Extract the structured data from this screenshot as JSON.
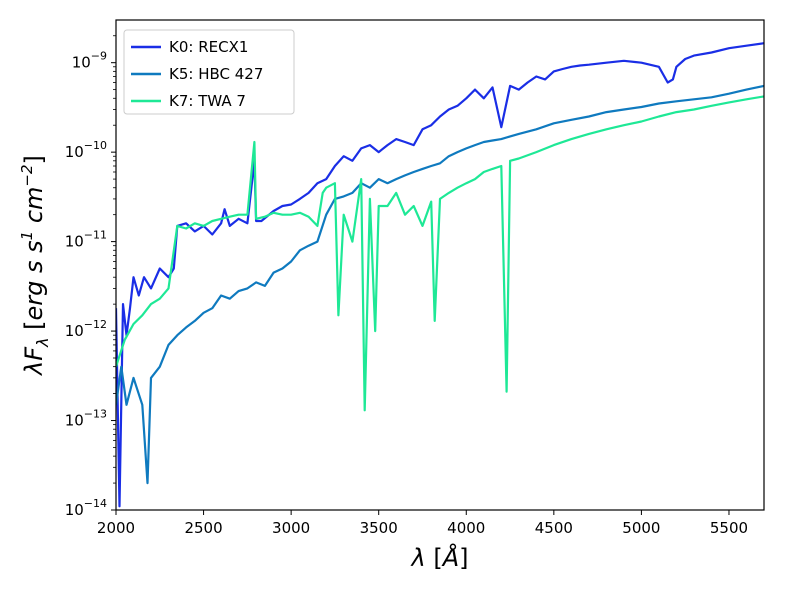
{
  "chart_data": {
    "type": "line",
    "title": "",
    "xlabel": "λ [Å]",
    "ylabel": "λF_λ [erg s s¹ cm⁻²]",
    "ylabel_parts": {
      "lambda": "λ",
      "F": "F",
      "sub": "λ",
      "units_open": " [",
      "units_a": "erg s s",
      "units_sup1": "1",
      "units_b": " cm",
      "units_sup2": "−2",
      "units_close": "]"
    },
    "xlabel_parts": {
      "lambda": "λ",
      "bracket_open": " [",
      "unit": "Å",
      "bracket_close": "]"
    },
    "xlim": [
      2000,
      5700
    ],
    "ylim": [
      1e-14,
      3e-09
    ],
    "y_scale": "log",
    "grid": false,
    "legend_position": "top-left",
    "x_ticks": [
      2000,
      2500,
      3000,
      3500,
      4000,
      4500,
      5000,
      5500
    ],
    "x_tick_labels": [
      "2000",
      "2500",
      "3000",
      "3500",
      "4000",
      "4500",
      "5000",
      "5500"
    ],
    "y_ticks": [
      1e-14,
      1e-13,
      1e-12,
      1e-11,
      1e-10,
      1e-09
    ],
    "y_tick_labels": [
      {
        "base": "10",
        "exp": "−14"
      },
      {
        "base": "10",
        "exp": "−13"
      },
      {
        "base": "10",
        "exp": "−12"
      },
      {
        "base": "10",
        "exp": "−11"
      },
      {
        "base": "10",
        "exp": "−10"
      },
      {
        "base": "10",
        "exp": "−9"
      }
    ],
    "series": [
      {
        "name": "K0: RECX1",
        "color": "#1a2ee6",
        "x": [
          2000,
          2020,
          2040,
          2060,
          2080,
          2100,
          2130,
          2160,
          2200,
          2250,
          2300,
          2330,
          2350,
          2400,
          2450,
          2500,
          2550,
          2600,
          2620,
          2650,
          2700,
          2750,
          2790,
          2800,
          2830,
          2900,
          2950,
          3000,
          3050,
          3100,
          3150,
          3200,
          3250,
          3300,
          3350,
          3400,
          3450,
          3500,
          3550,
          3600,
          3650,
          3700,
          3750,
          3800,
          3850,
          3900,
          3950,
          4000,
          4050,
          4100,
          4150,
          4200,
          4250,
          4300,
          4350,
          4400,
          4450,
          4500,
          4550,
          4600,
          4650,
          4700,
          4800,
          4900,
          5000,
          5100,
          5150,
          5180,
          5200,
          5250,
          5300,
          5400,
          5500,
          5600,
          5700
        ],
        "y": [
          1.8e-12,
          1.1e-14,
          2e-12,
          9e-13,
          1.8e-12,
          4e-12,
          2.5e-12,
          4e-12,
          3e-12,
          5e-12,
          4e-12,
          5e-12,
          1.5e-11,
          1.6e-11,
          1.3e-11,
          1.5e-11,
          1.2e-11,
          1.6e-11,
          2.3e-11,
          1.5e-11,
          1.8e-11,
          1.6e-11,
          8e-11,
          1.7e-11,
          1.7e-11,
          2.2e-11,
          2.5e-11,
          2.6e-11,
          3e-11,
          3.5e-11,
          4.5e-11,
          5e-11,
          7e-11,
          9e-11,
          8e-11,
          1.1e-10,
          1.2e-10,
          1e-10,
          1.2e-10,
          1.4e-10,
          1.3e-10,
          1.2e-10,
          1.8e-10,
          2e-10,
          2.5e-10,
          3e-10,
          3.3e-10,
          4e-10,
          5e-10,
          4e-10,
          5.3e-10,
          1.9e-10,
          5.5e-10,
          5e-10,
          6e-10,
          7e-10,
          6.5e-10,
          8e-10,
          8.5e-10,
          9e-10,
          9.3e-10,
          9.5e-10,
          1e-09,
          1.05e-09,
          1e-09,
          9e-10,
          6e-10,
          6.5e-10,
          9e-10,
          1.1e-09,
          1.2e-09,
          1.3e-09,
          1.45e-09,
          1.55e-09,
          1.65e-09
        ]
      },
      {
        "name": "K5: HBC 427",
        "color": "#0f7abf",
        "x": [
          2000,
          2030,
          2060,
          2100,
          2150,
          2180,
          2200,
          2250,
          2300,
          2350,
          2400,
          2450,
          2500,
          2550,
          2600,
          2650,
          2700,
          2750,
          2800,
          2850,
          2900,
          2950,
          3000,
          3050,
          3100,
          3150,
          3200,
          3250,
          3300,
          3350,
          3400,
          3450,
          3500,
          3550,
          3600,
          3650,
          3700,
          3750,
          3800,
          3850,
          3900,
          3950,
          4000,
          4050,
          4100,
          4150,
          4200,
          4250,
          4300,
          4400,
          4500,
          4600,
          4700,
          4800,
          4900,
          5000,
          5100,
          5200,
          5300,
          5400,
          5500,
          5600,
          5700
        ],
        "y": [
          1.5e-13,
          4e-13,
          1.5e-13,
          3e-13,
          1.5e-13,
          2e-14,
          3e-13,
          4e-13,
          7e-13,
          9e-13,
          1.1e-12,
          1.3e-12,
          1.6e-12,
          1.8e-12,
          2.5e-12,
          2.3e-12,
          2.8e-12,
          3e-12,
          3.5e-12,
          3.2e-12,
          4.5e-12,
          5e-12,
          6e-12,
          8e-12,
          9e-12,
          1e-11,
          2e-11,
          3e-11,
          3.2e-11,
          3.5e-11,
          4.5e-11,
          4e-11,
          5e-11,
          4.5e-11,
          5e-11,
          5.5e-11,
          6e-11,
          6.5e-11,
          7e-11,
          7.5e-11,
          9e-11,
          1e-10,
          1.1e-10,
          1.2e-10,
          1.3e-10,
          1.35e-10,
          1.4e-10,
          1.5e-10,
          1.6e-10,
          1.8e-10,
          2.1e-10,
          2.3e-10,
          2.5e-10,
          2.8e-10,
          3e-10,
          3.2e-10,
          3.5e-10,
          3.7e-10,
          3.9e-10,
          4.1e-10,
          4.5e-10,
          5e-10,
          5.5e-10
        ]
      },
      {
        "name": "K7: TWA 7",
        "color": "#1ee896",
        "x": [
          2000,
          2050,
          2100,
          2150,
          2200,
          2250,
          2300,
          2350,
          2400,
          2450,
          2500,
          2550,
          2600,
          2650,
          2700,
          2750,
          2790,
          2800,
          2850,
          2900,
          2950,
          3000,
          3050,
          3100,
          3150,
          3180,
          3200,
          3250,
          3270,
          3300,
          3350,
          3400,
          3420,
          3450,
          3480,
          3500,
          3550,
          3600,
          3650,
          3700,
          3750,
          3800,
          3820,
          3850,
          3900,
          3950,
          4000,
          4050,
          4100,
          4150,
          4200,
          4230,
          4250,
          4300,
          4400,
          4500,
          4600,
          4700,
          4800,
          4900,
          5000,
          5100,
          5200,
          5300,
          5400,
          5500,
          5600,
          5700
        ],
        "y": [
          4e-13,
          8e-13,
          1.2e-12,
          1.5e-12,
          2e-12,
          2.3e-12,
          3e-12,
          1.5e-11,
          1.4e-11,
          1.6e-11,
          1.5e-11,
          1.7e-11,
          1.8e-11,
          1.9e-11,
          2e-11,
          2e-11,
          1.3e-10,
          1.8e-11,
          1.9e-11,
          2.1e-11,
          2e-11,
          2e-11,
          2.1e-11,
          1.9e-11,
          1.5e-11,
          3.5e-11,
          4e-11,
          4.5e-11,
          1.5e-12,
          2e-11,
          1e-11,
          5e-11,
          1.3e-13,
          3e-11,
          1e-12,
          2.5e-11,
          2.5e-11,
          3.5e-11,
          2e-11,
          2.5e-11,
          1.5e-11,
          2.8e-11,
          1.3e-12,
          3e-11,
          3.5e-11,
          4e-11,
          4.5e-11,
          5e-11,
          6e-11,
          6.5e-11,
          7e-11,
          2.1e-13,
          8e-11,
          8.5e-11,
          1e-10,
          1.2e-10,
          1.4e-10,
          1.6e-10,
          1.8e-10,
          2e-10,
          2.2e-10,
          2.5e-10,
          2.8e-10,
          3e-10,
          3.3e-10,
          3.6e-10,
          3.9e-10,
          4.2e-10
        ]
      }
    ]
  }
}
